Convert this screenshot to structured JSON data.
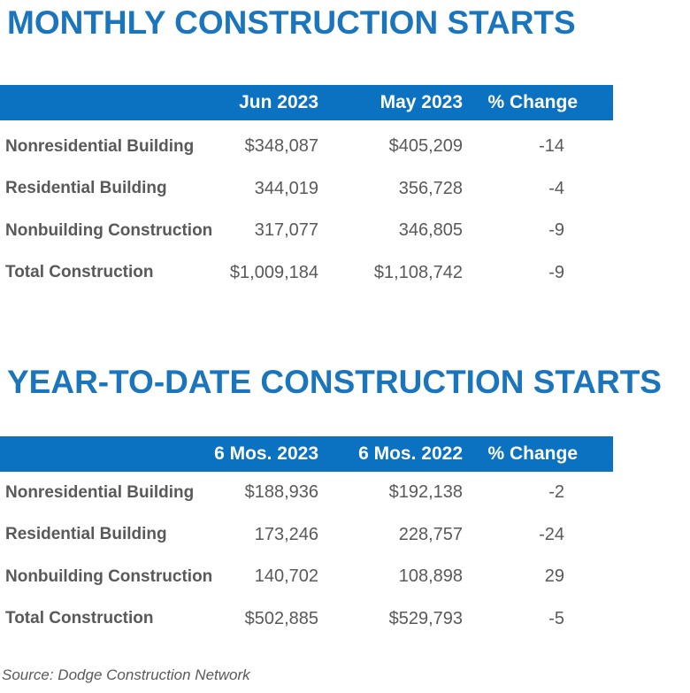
{
  "colors": {
    "header_bar_blue": "#0b72c2",
    "title_blue": "#1b75bc",
    "text_gray": "#595959",
    "header_text_white": "#ffffff",
    "background": "#ffffff"
  },
  "tables": [
    {
      "title": "MONTHLY CONSTRUCTION STARTS",
      "columns": [
        "Jun 2023",
        "May 2023",
        "% Change"
      ],
      "rows": [
        {
          "label": "Nonresidential Building",
          "v1": "$348,087",
          "v2": "$405,209",
          "pct": "-14"
        },
        {
          "label": "Residential Building",
          "v1": "344,019",
          "v2": "356,728",
          "pct": "-4"
        },
        {
          "label": "Nonbuilding Construction",
          "v1": "317,077",
          "v2": "346,805",
          "pct": "-9"
        },
        {
          "label": "Total Construction",
          "v1": "$1,009,184",
          "v2": "$1,108,742",
          "pct": "-9"
        }
      ]
    },
    {
      "title": "YEAR-TO-DATE CONSTRUCTION STARTS",
      "columns": [
        "6 Mos. 2023",
        "6 Mos. 2022",
        "% Change"
      ],
      "rows": [
        {
          "label": "Nonresidential Building",
          "v1": "$188,936",
          "v2": "$192,138",
          "pct": "-2"
        },
        {
          "label": "Residential Building",
          "v1": "173,246",
          "v2": "228,757",
          "pct": "-24"
        },
        {
          "label": "Nonbuilding Construction",
          "v1": "140,702",
          "v2": "108,898",
          "pct": "29"
        },
        {
          "label": "Total Construction",
          "v1": "$502,885",
          "v2": "$529,793",
          "pct": "-5"
        }
      ]
    }
  ],
  "source_note": "Source: Dodge Construction Network",
  "chart_data": [
    {
      "type": "table",
      "title": "MONTHLY CONSTRUCTION STARTS",
      "columns": [
        "",
        "Jun 2023",
        "May 2023",
        "% Change"
      ],
      "rows": [
        [
          "Nonresidential Building",
          348087,
          405209,
          -14
        ],
        [
          "Residential Building",
          344019,
          356728,
          -4
        ],
        [
          "Nonbuilding Construction",
          317077,
          346805,
          -9
        ],
        [
          "Total Construction",
          1009184,
          1108742,
          -9
        ]
      ]
    },
    {
      "type": "table",
      "title": "YEAR-TO-DATE CONSTRUCTION STARTS",
      "columns": [
        "",
        "6 Mos. 2023",
        "6 Mos. 2022",
        "% Change"
      ],
      "rows": [
        [
          "Nonresidential Building",
          188936,
          192138,
          -2
        ],
        [
          "Residential Building",
          173246,
          228757,
          -24
        ],
        [
          "Nonbuilding Construction",
          140702,
          108898,
          29
        ],
        [
          "Total Construction",
          502885,
          529793,
          -5
        ]
      ]
    }
  ]
}
